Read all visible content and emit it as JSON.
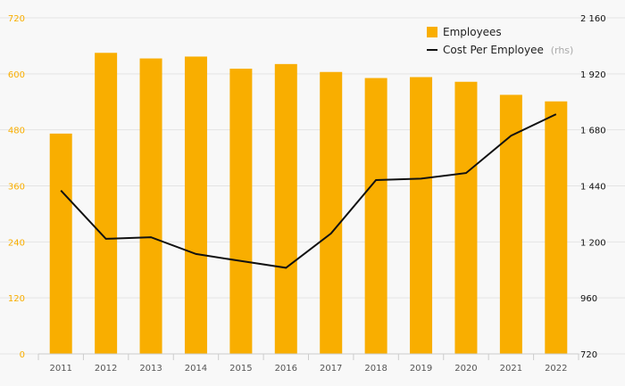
{
  "chart_data": {
    "type": "bar",
    "categories": [
      "2011",
      "2012",
      "2013",
      "2014",
      "2015",
      "2016",
      "2017",
      "2018",
      "2019",
      "2020",
      "2021",
      "2022"
    ],
    "series": [
      {
        "name": "Employees",
        "type": "bar",
        "axis": "left",
        "color": "#f9ae00",
        "values": [
          472,
          645,
          633,
          637,
          611,
          621,
          604,
          591,
          593,
          583,
          555,
          541
        ]
      },
      {
        "name": "Cost Per Employee",
        "type": "line",
        "axis": "right",
        "color": "#111111",
        "values": [
          1420,
          1213,
          1220,
          1148,
          1118,
          1089,
          1236,
          1465,
          1471,
          1495,
          1655,
          1747
        ]
      }
    ],
    "y_left": {
      "ylim": [
        0,
        720
      ],
      "ticks": [
        0,
        120,
        240,
        360,
        480,
        600,
        720
      ],
      "tick_color": "#f9ae00"
    },
    "y_right": {
      "ylim": [
        720,
        2160
      ],
      "ticks": [
        "720",
        "960",
        "1 200",
        "1 440",
        "1 680",
        "1 920",
        "2 160"
      ],
      "tick_values": [
        720,
        960,
        1200,
        1440,
        1680,
        1920,
        2160
      ],
      "tick_color": "#111111"
    },
    "legend": {
      "position": "top-right",
      "items": [
        "Employees",
        "Cost Per Employee"
      ],
      "note": "(rhs)"
    },
    "grid": true
  }
}
